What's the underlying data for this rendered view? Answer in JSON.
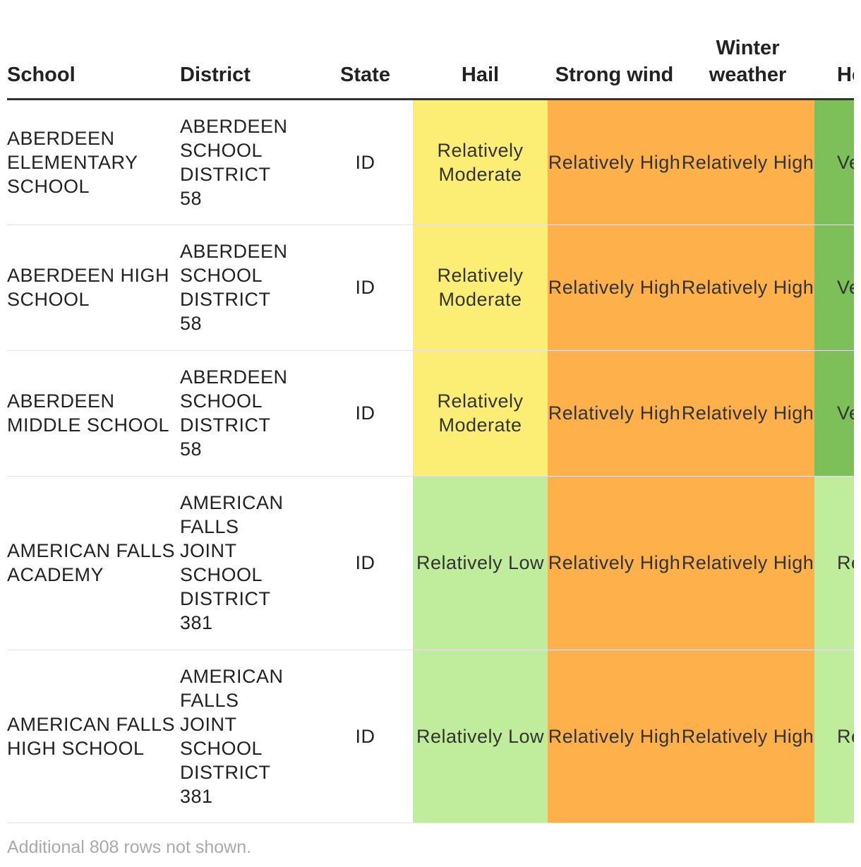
{
  "table": {
    "header": [
      "School",
      "District",
      "State",
      "Hail",
      "Strong wind",
      "Winter weather",
      "He"
    ],
    "rows": [
      [
        "ABERDEEN ELEMENTARY SCHOOL",
        "ABERDEEN SCHOOL DISTRICT 58",
        "ID",
        "Relatively Moderate",
        "Relatively High",
        "Relatively High",
        "Ve"
      ],
      [
        "ABERDEEN HIGH SCHOOL",
        "ABERDEEN SCHOOL DISTRICT 58",
        "ID",
        "Relatively Moderate",
        "Relatively High",
        "Relatively High",
        "Ve"
      ],
      [
        "ABERDEEN MIDDLE SCHOOL",
        "ABERDEEN SCHOOL DISTRICT 58",
        "ID",
        "Relatively Moderate",
        "Relatively High",
        "Relatively High",
        "Ve"
      ],
      [
        "AMERICAN FALLS ACADEMY",
        "AMERICAN FALLS JOINT SCHOOL DISTRICT 381",
        "ID",
        "Relatively Low",
        "Relatively High",
        "Relatively High",
        "Re"
      ],
      [
        "AMERICAN FALLS HIGH SCHOOL",
        "AMERICAN FALLS JOINT SCHOOL DISTRICT 381",
        "ID",
        "Relatively Low",
        "Relatively High",
        "Relatively High",
        "Re"
      ]
    ]
  },
  "footer": "Additional 808 rows not shown."
}
